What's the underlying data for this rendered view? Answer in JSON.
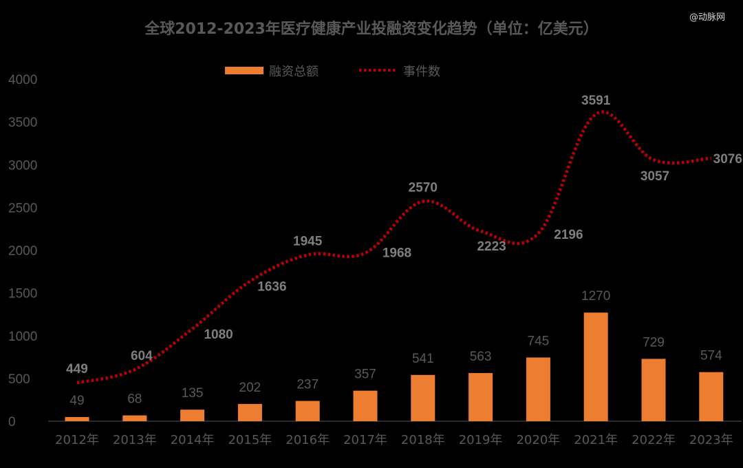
{
  "title": "全球2012-2023年医疗健康产业投融资变化趋势（单位：亿美元）",
  "watermark": "@动脉网",
  "colors": {
    "background": "#000000",
    "bar": "#ED7D31",
    "line": "#C00000",
    "axis": "#595959",
    "text": "#595959"
  },
  "legend": {
    "placement": "top-center",
    "items": [
      {
        "label": "融资总额",
        "type": "bar"
      },
      {
        "label": "事件数",
        "type": "dotted-line"
      }
    ]
  },
  "chart_data": {
    "type": "bar",
    "title": "全球2012-2023年医疗健康产业投融资变化趋势（单位：亿美元）",
    "categories": [
      "2012年",
      "2013年",
      "2014年",
      "2015年",
      "2016年",
      "2017年",
      "2018年",
      "2019年",
      "2020年",
      "2021年",
      "2022年",
      "2023年"
    ],
    "ylim": [
      0,
      4000
    ],
    "yticks": [
      0,
      500,
      1000,
      1500,
      2000,
      2500,
      3000,
      3500,
      4000
    ],
    "grid": false,
    "series": [
      {
        "name": "融资总额",
        "type": "bar",
        "values": [
          49,
          68,
          135,
          202,
          237,
          357,
          541,
          563,
          745,
          1270,
          729,
          574
        ]
      },
      {
        "name": "事件数",
        "type": "line",
        "style": "dotted",
        "values": [
          449,
          604,
          1080,
          1636,
          1945,
          1968,
          2570,
          2223,
          2196,
          3591,
          3057,
          3076
        ]
      }
    ]
  }
}
